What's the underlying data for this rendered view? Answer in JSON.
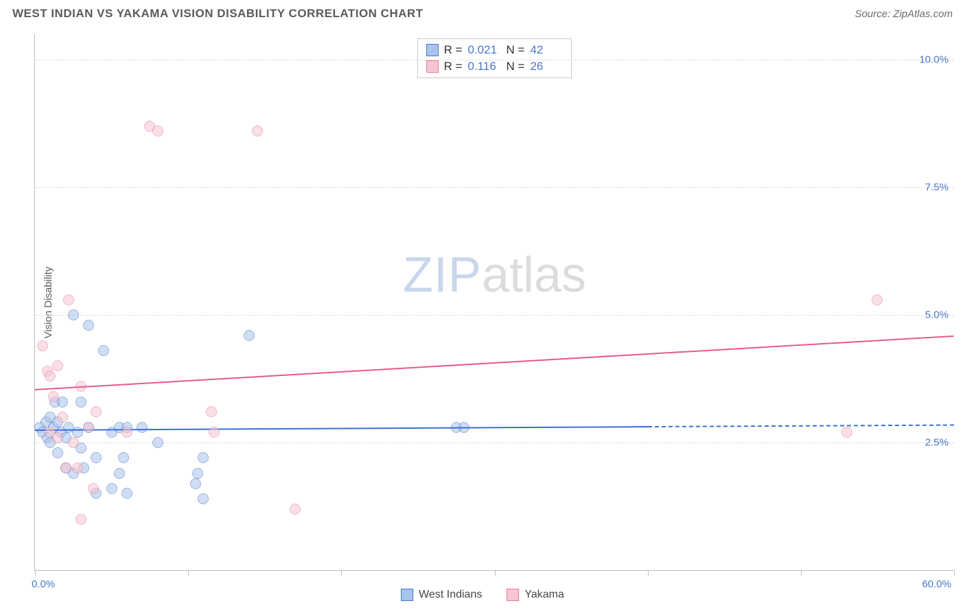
{
  "header": {
    "title": "WEST INDIAN VS YAKAMA VISION DISABILITY CORRELATION CHART",
    "source": "Source: ZipAtlas.com"
  },
  "watermark": {
    "zip": "ZIP",
    "atlas": "atlas"
  },
  "chart": {
    "type": "scatter",
    "ylabel": "Vision Disability",
    "xlim": [
      0,
      60
    ],
    "ylim": [
      0,
      10.5
    ],
    "x_tick_positions": [
      0,
      10,
      20,
      30,
      40,
      50,
      60
    ],
    "x_tick_labels": {
      "min": "0.0%",
      "max": "60.0%"
    },
    "y_gridlines": [
      2.5,
      5.0,
      7.5,
      10.0
    ],
    "y_tick_labels": [
      "2.5%",
      "5.0%",
      "7.5%",
      "10.0%"
    ],
    "background_color": "#ffffff",
    "grid_color": "#dcdcdc",
    "axis_color": "#bbbbbb",
    "tick_label_color": "#4a76c7",
    "axis_label_color": "#5a5a5a",
    "axis_label_fontsize": 15,
    "tick_label_fontsize": 15,
    "marker_radius": 8,
    "marker_opacity": 0.55,
    "series": [
      {
        "name": "West Indians",
        "fill_color": "#a8c4ec",
        "stroke_color": "#4a76c7",
        "line_color": "#3a6fd8",
        "R": "0.021",
        "N": "42",
        "regression": {
          "x1": 0,
          "y1": 2.75,
          "x2": 60,
          "y2": 2.85,
          "solid_until_x": 40
        },
        "points": [
          [
            0.3,
            2.8
          ],
          [
            0.5,
            2.7
          ],
          [
            0.7,
            2.9
          ],
          [
            0.8,
            2.6
          ],
          [
            1.0,
            3.0
          ],
          [
            1.0,
            2.5
          ],
          [
            1.2,
            2.8
          ],
          [
            1.3,
            3.3
          ],
          [
            1.5,
            2.3
          ],
          [
            1.5,
            2.9
          ],
          [
            1.7,
            2.7
          ],
          [
            1.8,
            3.3
          ],
          [
            2.0,
            2.6
          ],
          [
            2.0,
            2.0
          ],
          [
            2.2,
            2.8
          ],
          [
            2.5,
            1.9
          ],
          [
            2.5,
            5.0
          ],
          [
            2.8,
            2.7
          ],
          [
            3.0,
            3.3
          ],
          [
            3.0,
            2.4
          ],
          [
            3.2,
            2.0
          ],
          [
            3.5,
            4.8
          ],
          [
            3.5,
            2.8
          ],
          [
            4.0,
            2.2
          ],
          [
            4.0,
            1.5
          ],
          [
            4.5,
            4.3
          ],
          [
            5.0,
            2.7
          ],
          [
            5.0,
            1.6
          ],
          [
            5.5,
            2.8
          ],
          [
            5.8,
            2.2
          ],
          [
            6.0,
            2.8
          ],
          [
            6.0,
            1.5
          ],
          [
            7.0,
            2.8
          ],
          [
            8.0,
            2.5
          ],
          [
            10.5,
            1.7
          ],
          [
            10.6,
            1.9
          ],
          [
            11.0,
            1.4
          ],
          [
            11.0,
            2.2
          ],
          [
            14.0,
            4.6
          ],
          [
            27.5,
            2.8
          ],
          [
            28.0,
            2.8
          ],
          [
            5.5,
            1.9
          ]
        ]
      },
      {
        "name": "Yakama",
        "fill_color": "#f6c5d1",
        "stroke_color": "#e77a9a",
        "line_color": "#e75a88",
        "R": "0.116",
        "N": "26",
        "regression": {
          "x1": 0,
          "y1": 3.55,
          "x2": 60,
          "y2": 4.6,
          "solid_until_x": 60
        },
        "points": [
          [
            0.5,
            4.4
          ],
          [
            0.8,
            3.9
          ],
          [
            1.0,
            3.8
          ],
          [
            1.0,
            2.7
          ],
          [
            1.2,
            3.4
          ],
          [
            1.5,
            4.0
          ],
          [
            1.5,
            2.6
          ],
          [
            1.8,
            3.0
          ],
          [
            2.0,
            2.0
          ],
          [
            2.2,
            5.3
          ],
          [
            2.5,
            2.5
          ],
          [
            2.8,
            2.0
          ],
          [
            3.0,
            3.6
          ],
          [
            3.0,
            1.0
          ],
          [
            3.5,
            2.8
          ],
          [
            3.8,
            1.6
          ],
          [
            6.0,
            2.7
          ],
          [
            7.5,
            8.7
          ],
          [
            8.0,
            8.6
          ],
          [
            11.5,
            3.1
          ],
          [
            11.7,
            2.7
          ],
          [
            14.5,
            8.6
          ],
          [
            17.0,
            1.2
          ],
          [
            53.0,
            2.7
          ],
          [
            55.0,
            5.3
          ],
          [
            4.0,
            3.1
          ]
        ]
      }
    ]
  },
  "stats_box": {
    "rows": [
      {
        "swatch_series": 0,
        "r_label": "R =",
        "n_label": "N ="
      },
      {
        "swatch_series": 1,
        "r_label": "R =",
        "n_label": "N ="
      }
    ]
  },
  "bottom_legend": {
    "items": [
      {
        "series": 0
      },
      {
        "series": 1
      }
    ]
  }
}
